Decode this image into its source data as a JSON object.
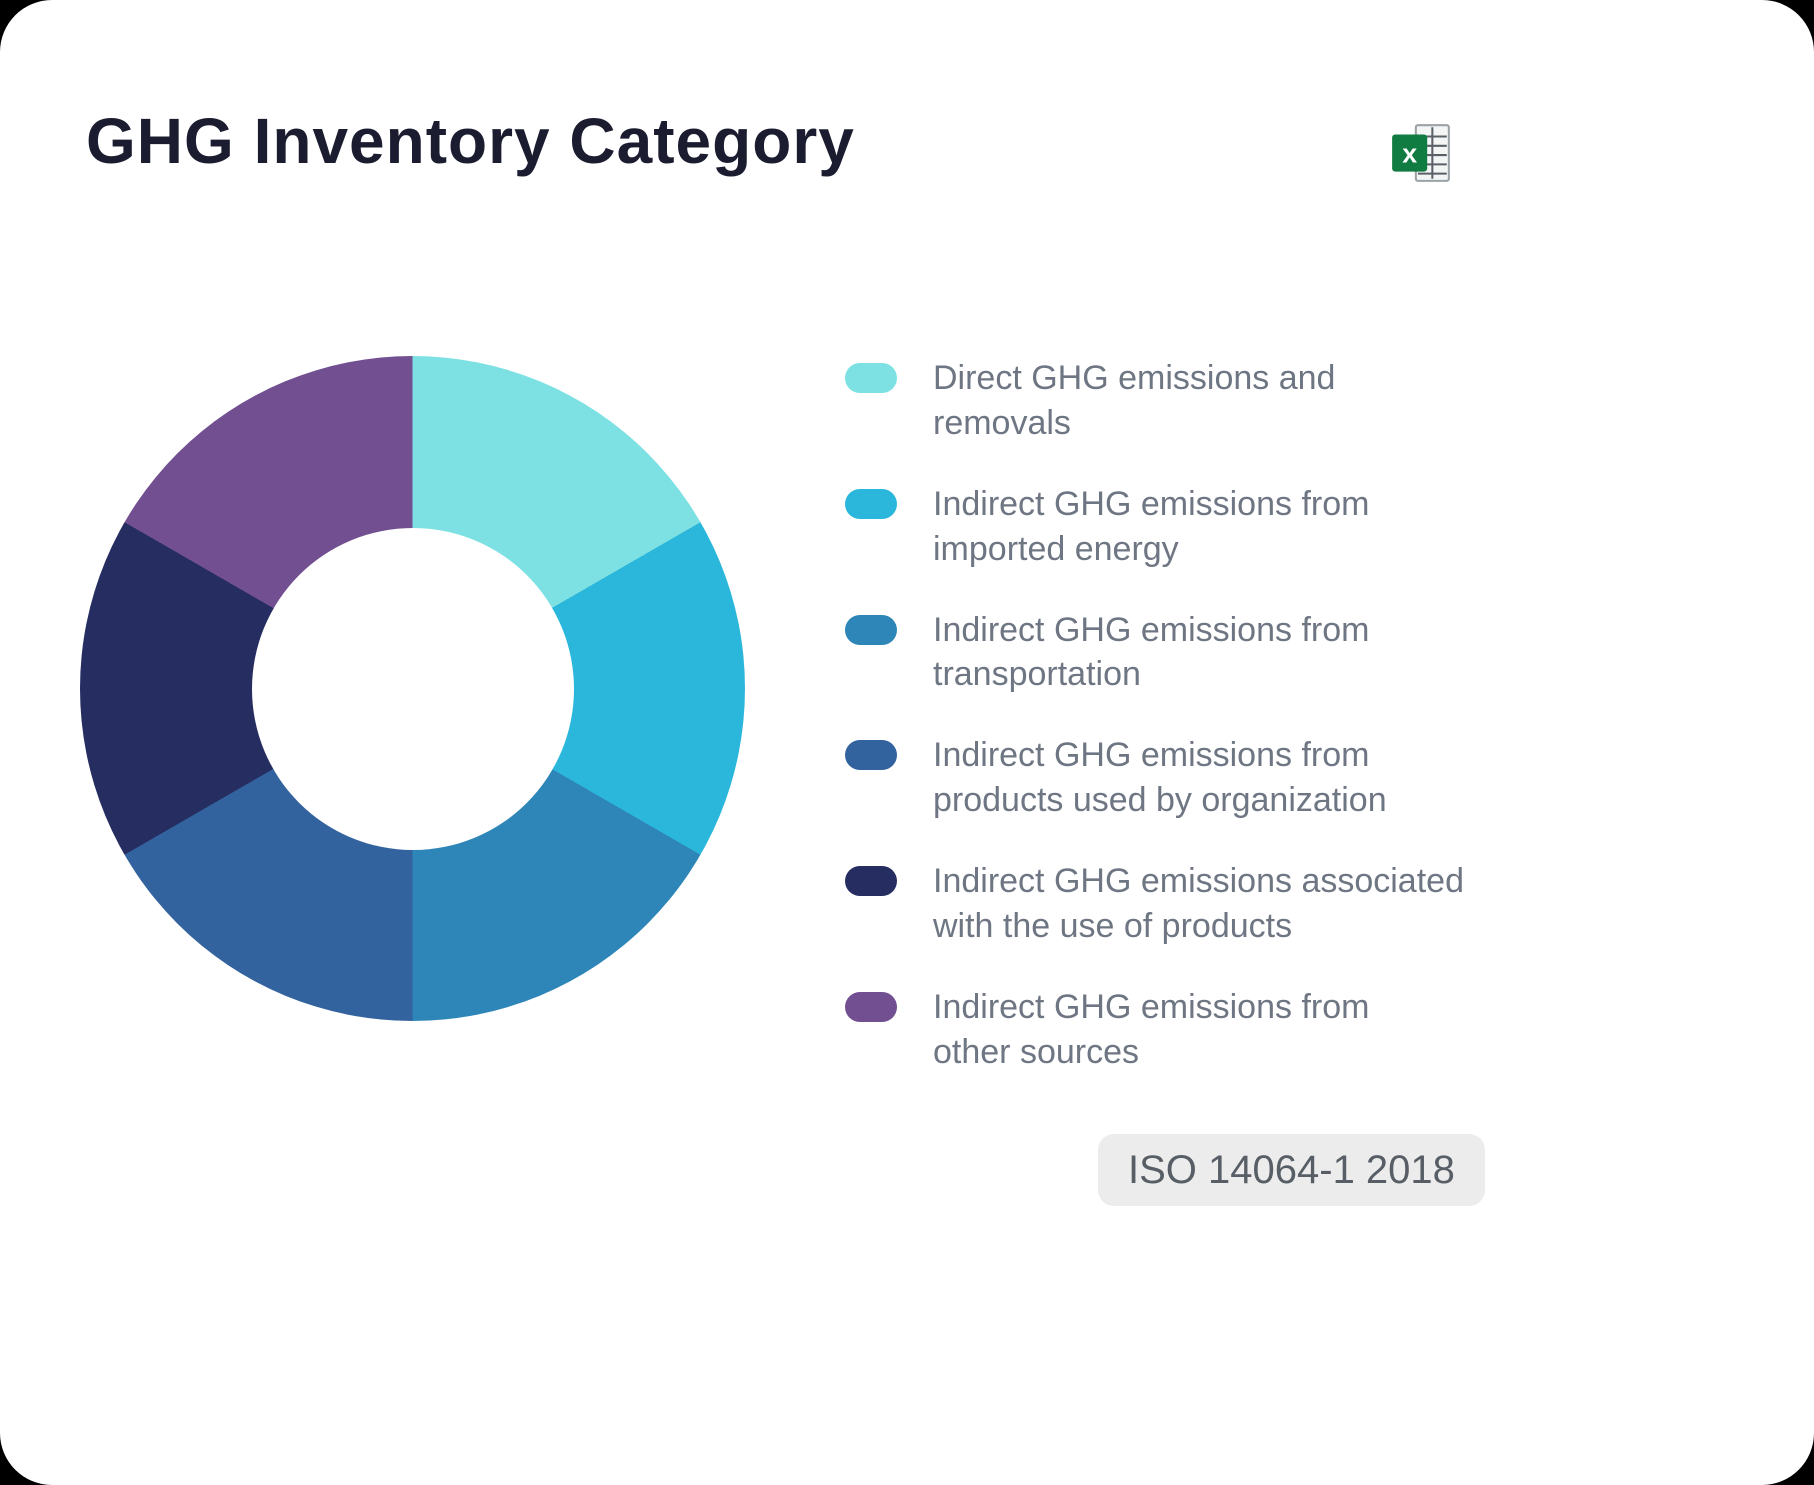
{
  "page": {
    "title": "GHG Inventory Category",
    "badge": "ISO 14064-1 2018"
  },
  "icons": {
    "excel": "excel-icon"
  },
  "chart_data": {
    "type": "pie",
    "donut": true,
    "title": "GHG Inventory Category",
    "categories": [
      "Direct GHG emissions and removals",
      "Indirect GHG emissions from imported energy",
      "Indirect GHG emissions from transportation",
      "Indirect GHG emissions from products used by organization",
      "Indirect GHG emissions associated with the use of products",
      "Indirect GHG emissions from other sources"
    ],
    "values": [
      1,
      1,
      1,
      1,
      1,
      1
    ],
    "colors": [
      "#7DE1E4",
      "#2BB7DC",
      "#2E86B8",
      "#33639F",
      "#262D60",
      "#714F90"
    ],
    "start_angle_deg": 0,
    "direction": "clockwise",
    "inner_radius_ratio": 0.48,
    "legend_position": "right"
  },
  "legend": {
    "items": [
      {
        "label": "Direct GHG emissions and\nremovals",
        "color": "#7DE1E4"
      },
      {
        "label": "Indirect GHG emissions from\nimported energy",
        "color": "#2BB7DC"
      },
      {
        "label": "Indirect GHG emissions from\ntransportation",
        "color": "#2E86B8"
      },
      {
        "label": "Indirect GHG emissions from\nproducts used by organization",
        "color": "#33639F"
      },
      {
        "label": "Indirect GHG emissions associated\nwith the use of products",
        "color": "#262D60"
      },
      {
        "label": "Indirect GHG emissions from\nother sources",
        "color": "#714F90"
      }
    ]
  },
  "theme": {
    "card_bg": "#FFFFFF",
    "page_bg": "#000000",
    "title_color": "#1B1C30",
    "legend_text_color": "#6F7683",
    "badge_bg": "#ECECEC",
    "badge_text_color": "#585E66",
    "excel_green": "#107C41"
  }
}
